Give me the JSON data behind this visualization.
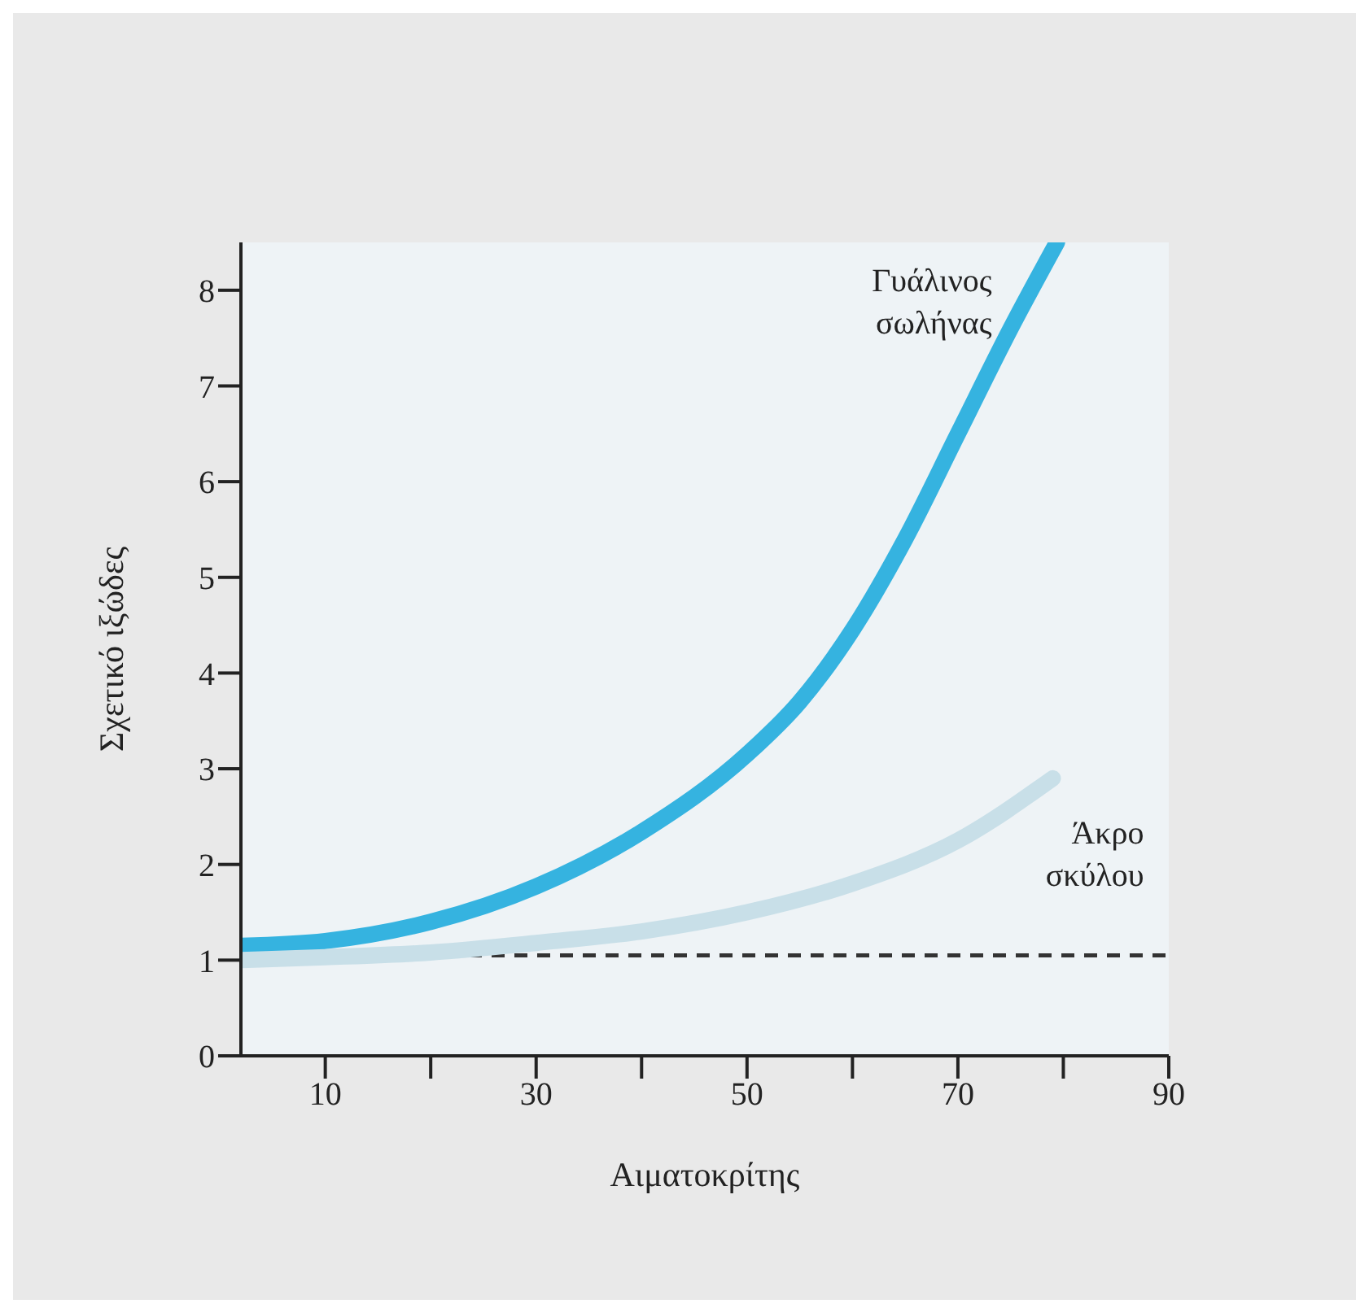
{
  "chart_data": {
    "type": "line",
    "xlabel": "Αιματοκρίτης",
    "ylabel": "Σχετικό ιξώδες",
    "xlim": [
      2,
      90
    ],
    "xticks": [
      10,
      {
        "value": 20,
        "label": null
      },
      30,
      {
        "value": 40,
        "label": null
      },
      50,
      {
        "value": 60,
        "label": null
      },
      70,
      {
        "value": 80,
        "label": null
      },
      90
    ],
    "ylim": [
      0,
      8.5
    ],
    "yticks": [
      0,
      1,
      2,
      3,
      4,
      5,
      6,
      7,
      8
    ],
    "grid": false,
    "legend": false,
    "marker": "none",
    "line_style": "solid",
    "series": [
      {
        "name": "Γυάλινος σωλήνας",
        "color": "#35b3e0",
        "x": [
          2,
          10,
          20,
          30,
          40,
          50,
          55,
          60,
          65,
          70,
          75,
          79.4
        ],
        "values": [
          1.15,
          1.2,
          1.4,
          1.77,
          2.34,
          3.15,
          3.7,
          4.45,
          5.4,
          6.5,
          7.6,
          8.5
        ]
      },
      {
        "name": "Άκρο σκύλου",
        "color": "#c8dfe8",
        "x": [
          2,
          10,
          20,
          30,
          40,
          50,
          60,
          70,
          79
        ],
        "values": [
          1.0,
          1.03,
          1.08,
          1.18,
          1.3,
          1.5,
          1.8,
          2.25,
          2.9
        ]
      }
    ],
    "ref_lines": [
      {
        "axis": "y",
        "value": 1.05,
        "color": "#333333",
        "line_style": "dashed"
      }
    ]
  }
}
